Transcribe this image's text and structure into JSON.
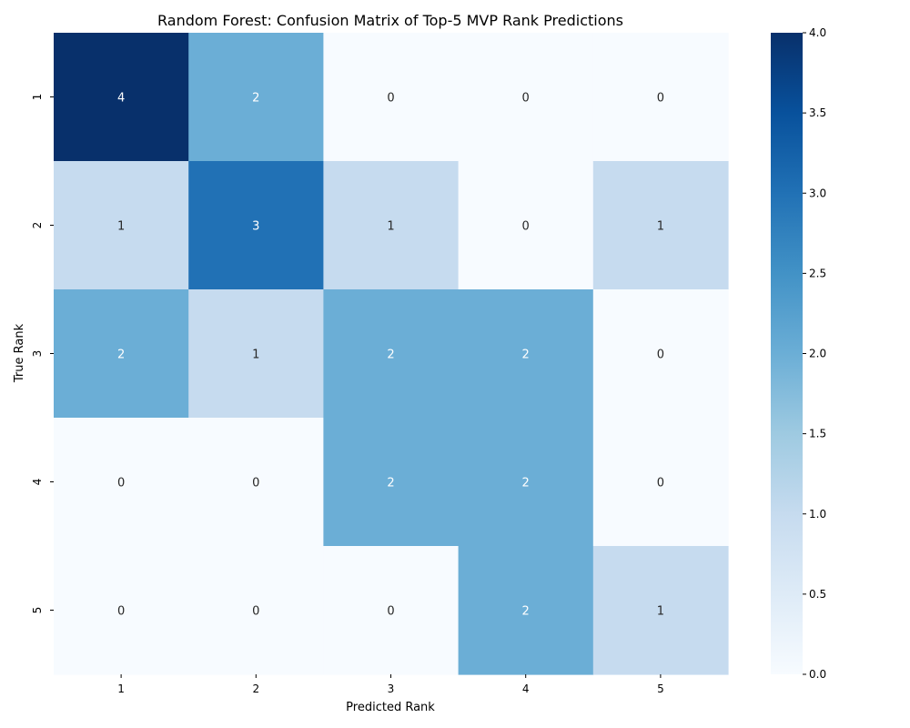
{
  "chart_data": {
    "type": "heatmap",
    "title": "Random Forest: Confusion Matrix of Top-5 MVP Rank Predictions",
    "xlabel": "Predicted Rank",
    "ylabel": "True Rank",
    "x_categories": [
      "1",
      "2",
      "3",
      "4",
      "5"
    ],
    "y_categories": [
      "1",
      "2",
      "3",
      "4",
      "5"
    ],
    "values": [
      [
        4,
        2,
        0,
        0,
        0
      ],
      [
        1,
        3,
        1,
        0,
        1
      ],
      [
        2,
        1,
        2,
        2,
        0
      ],
      [
        0,
        0,
        2,
        2,
        0
      ],
      [
        0,
        0,
        0,
        2,
        1
      ]
    ],
    "colormap": "Blues",
    "colorbar": {
      "min": 0.0,
      "max": 4.0,
      "ticks": [
        "0.0",
        "0.5",
        "1.0",
        "1.5",
        "2.0",
        "2.5",
        "3.0",
        "3.5",
        "4.0"
      ],
      "position": "right"
    },
    "grid": false,
    "annotations": true
  }
}
